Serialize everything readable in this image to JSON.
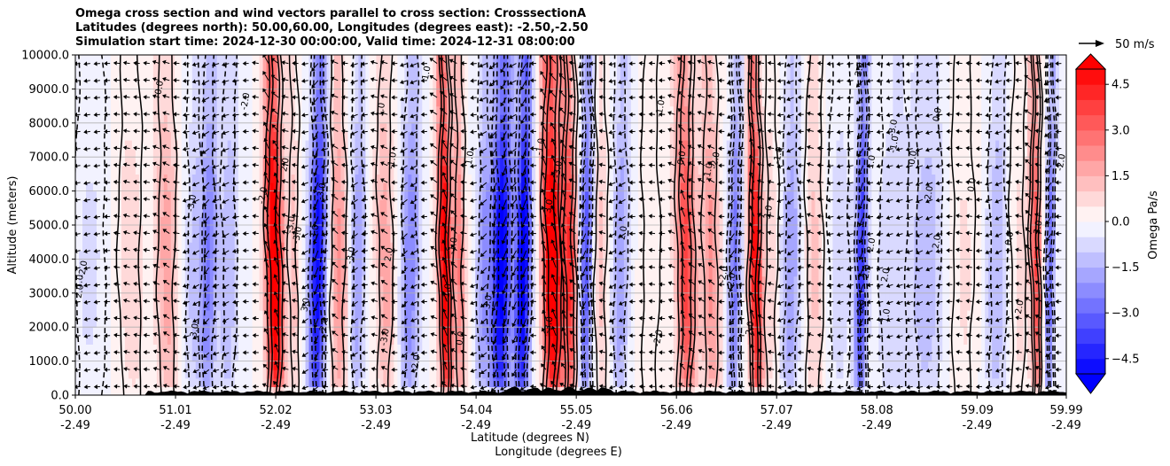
{
  "chart_data": {
    "type": "heatmap",
    "title": {
      "line1": "Omega cross section and wind vectors parallel to cross section: CrosssectionA",
      "line2": "Latitudes (degrees north): 50.00,60.00, Longitudes (degrees east): -2.50,-2.50",
      "line3": "Simulation start time: 2024-12-30 00:00:00, Valid time: 2024-12-31 08:00:00"
    },
    "xlabel": "Latitude (degrees N)",
    "xlabel2": "Longitude (degrees E)",
    "ylabel": "Altitude (meters)",
    "xlim": [
      50.0,
      59.99
    ],
    "ylim": [
      0,
      10000
    ],
    "x_ticks": [
      {
        "value": 50.0,
        "lat": "50.00",
        "lon": "-2.49"
      },
      {
        "value": 51.01,
        "lat": "51.01",
        "lon": "-2.49"
      },
      {
        "value": 52.02,
        "lat": "52.02",
        "lon": "-2.49"
      },
      {
        "value": 53.03,
        "lat": "53.03",
        "lon": "-2.49"
      },
      {
        "value": 54.04,
        "lat": "54.04",
        "lon": "-2.49"
      },
      {
        "value": 55.05,
        "lat": "55.05",
        "lon": "-2.49"
      },
      {
        "value": 56.06,
        "lat": "56.06",
        "lon": "-2.49"
      },
      {
        "value": 57.07,
        "lat": "57.07",
        "lon": "-2.49"
      },
      {
        "value": 58.08,
        "lat": "58.08",
        "lon": "-2.49"
      },
      {
        "value": 59.09,
        "lat": "59.09",
        "lon": "-2.49"
      },
      {
        "value": 59.99,
        "lat": "59.99",
        "lon": "-2.49"
      }
    ],
    "y_ticks": [
      {
        "value": 0,
        "label": "0.0"
      },
      {
        "value": 1000,
        "label": "1000.0"
      },
      {
        "value": 2000,
        "label": "2000.0"
      },
      {
        "value": 3000,
        "label": "3000.0"
      },
      {
        "value": 4000,
        "label": "4000.0"
      },
      {
        "value": 5000,
        "label": "5000.0"
      },
      {
        "value": 6000,
        "label": "6000.0"
      },
      {
        "value": 7000,
        "label": "7000.0"
      },
      {
        "value": 8000,
        "label": "8000.0"
      },
      {
        "value": 9000,
        "label": "9000.0"
      },
      {
        "value": 10000,
        "label": "10000.0"
      }
    ],
    "grid": true,
    "colorbar": {
      "label": "Omega Pa/s",
      "range": [
        -5.0,
        5.0
      ],
      "step": 0.5,
      "extend": "both",
      "ticks": [
        {
          "value": 4.5,
          "label": "4.5"
        },
        {
          "value": 3.0,
          "label": "3.0"
        },
        {
          "value": 1.5,
          "label": "1.5"
        },
        {
          "value": 0.0,
          "label": "0.0"
        },
        {
          "value": -1.5,
          "label": "−1.5"
        },
        {
          "value": -3.0,
          "label": "−3.0"
        },
        {
          "value": -4.5,
          "label": "−4.5"
        }
      ]
    },
    "quiver_key": {
      "label": "50 m/s",
      "speed": 50
    },
    "omega_bands": [
      {
        "lat": 50.15,
        "width": 0.22,
        "amp": -0.6
      },
      {
        "lat": 50.55,
        "width": 0.16,
        "amp": 0.8
      },
      {
        "lat": 50.92,
        "width": 0.12,
        "amp": 1.8
      },
      {
        "lat": 51.2,
        "width": 0.1,
        "amp": -1.2
      },
      {
        "lat": 51.35,
        "width": 0.08,
        "amp": -2.5
      },
      {
        "lat": 51.55,
        "width": 0.1,
        "amp": -1.5
      },
      {
        "lat": 52.0,
        "width": 0.09,
        "amp": 6.0
      },
      {
        "lat": 52.2,
        "width": 0.06,
        "amp": 1.2
      },
      {
        "lat": 52.45,
        "width": 0.09,
        "amp": -5.0
      },
      {
        "lat": 52.65,
        "width": 0.1,
        "amp": 2.2
      },
      {
        "lat": 52.85,
        "width": 0.08,
        "amp": -2.0
      },
      {
        "lat": 53.12,
        "width": 0.1,
        "amp": 1.8
      },
      {
        "lat": 53.38,
        "width": 0.1,
        "amp": -2.5
      },
      {
        "lat": 53.72,
        "width": 0.07,
        "amp": 5.5
      },
      {
        "lat": 53.87,
        "width": 0.06,
        "amp": 2.5
      },
      {
        "lat": 54.12,
        "width": 0.08,
        "amp": -2.0
      },
      {
        "lat": 54.3,
        "width": 0.1,
        "amp": -5.5
      },
      {
        "lat": 54.52,
        "width": 0.08,
        "amp": -5.5
      },
      {
        "lat": 54.8,
        "width": 0.1,
        "amp": 6.0
      },
      {
        "lat": 54.98,
        "width": 0.08,
        "amp": 4.0
      },
      {
        "lat": 55.15,
        "width": 0.07,
        "amp": -3.5
      },
      {
        "lat": 55.3,
        "width": 0.08,
        "amp": 1.2
      },
      {
        "lat": 55.5,
        "width": 0.09,
        "amp": -2.0
      },
      {
        "lat": 55.8,
        "width": 0.12,
        "amp": 0.4
      },
      {
        "lat": 56.15,
        "width": 0.1,
        "amp": 3.8
      },
      {
        "lat": 56.4,
        "width": 0.1,
        "amp": 2.2
      },
      {
        "lat": 56.65,
        "width": 0.07,
        "amp": -2.8
      },
      {
        "lat": 56.85,
        "width": 0.07,
        "amp": 5.0
      },
      {
        "lat": 57.02,
        "width": 0.08,
        "amp": 0.8
      },
      {
        "lat": 57.22,
        "width": 0.1,
        "amp": -2.0
      },
      {
        "lat": 57.45,
        "width": 0.12,
        "amp": 1.2
      },
      {
        "lat": 57.7,
        "width": 0.15,
        "amp": -0.8
      },
      {
        "lat": 57.93,
        "width": 0.06,
        "amp": -4.0
      },
      {
        "lat": 58.25,
        "width": 0.2,
        "amp": -0.9
      },
      {
        "lat": 58.6,
        "width": 0.18,
        "amp": -1.3
      },
      {
        "lat": 58.95,
        "width": 0.15,
        "amp": 0.6
      },
      {
        "lat": 59.3,
        "width": 0.12,
        "amp": -1.5
      },
      {
        "lat": 59.5,
        "width": 0.1,
        "amp": 0.7
      },
      {
        "lat": 59.68,
        "width": 0.06,
        "amp": 3.5
      },
      {
        "lat": 59.83,
        "width": 0.05,
        "amp": -3.0
      }
    ],
    "contour_label_samples": [
      "0.0",
      "1.0",
      "-1.0",
      "2.0",
      "-2.0",
      "3.0",
      "-3.0"
    ]
  }
}
